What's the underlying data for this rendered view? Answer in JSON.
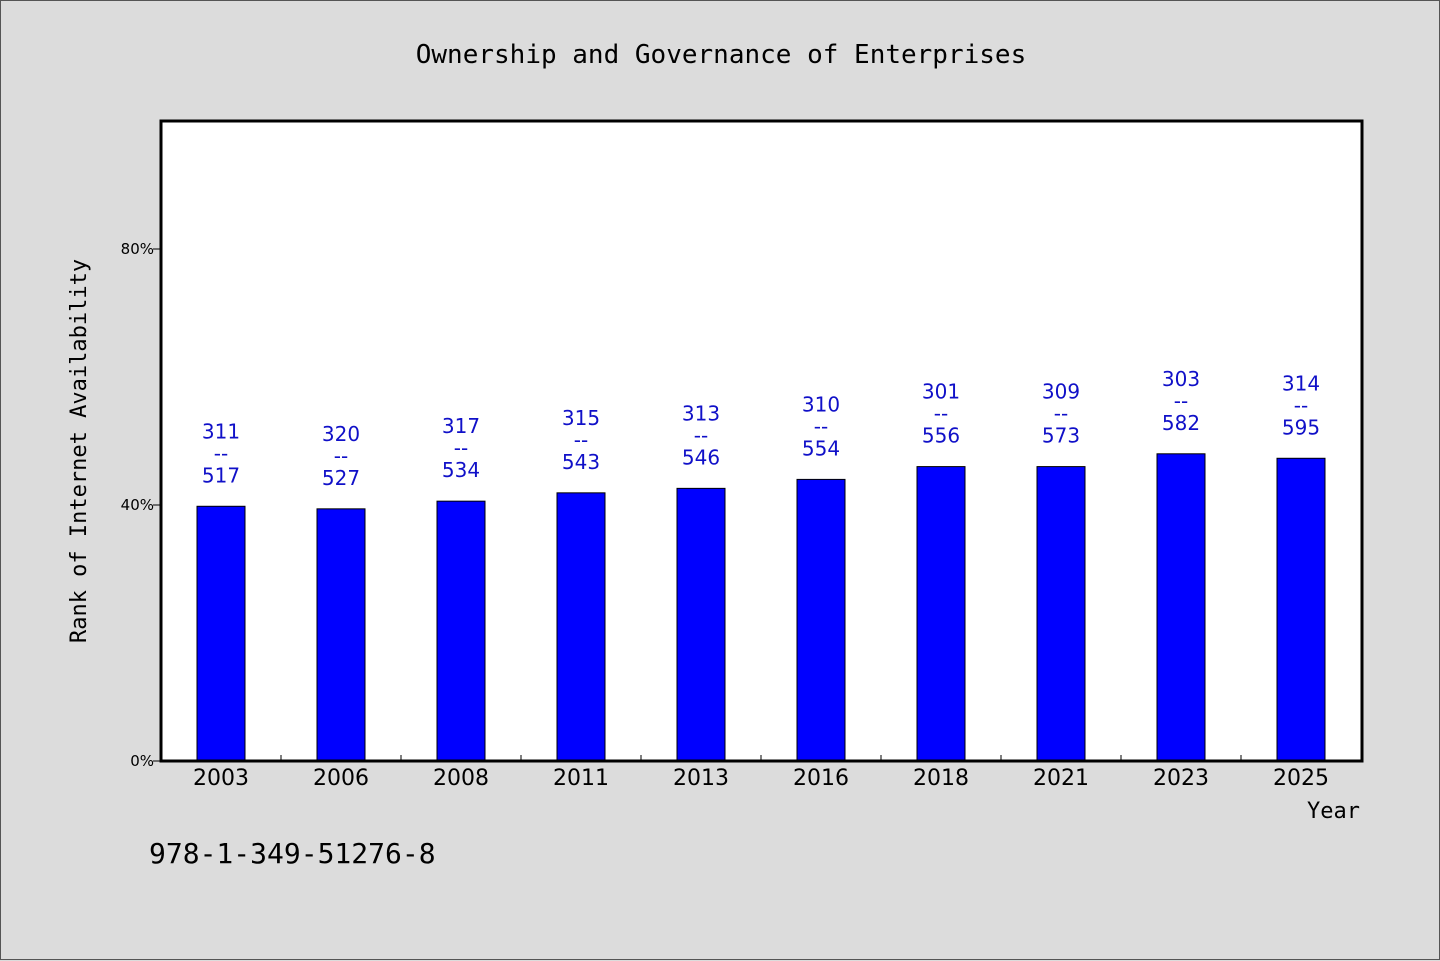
{
  "chart_data": {
    "type": "bar",
    "title": "Ownership and Governance of Enterprises",
    "xlabel": "Year",
    "ylabel": "Rank of Internet Availability",
    "categories": [
      "2003",
      "2006",
      "2008",
      "2011",
      "2013",
      "2016",
      "2018",
      "2021",
      "2023",
      "2025"
    ],
    "values": [
      39.8,
      39.4,
      40.6,
      41.9,
      42.6,
      44.0,
      46.0,
      46.0,
      48.0,
      47.3
    ],
    "labels_top": [
      "311",
      "320",
      "317",
      "315",
      "313",
      "310",
      "301",
      "309",
      "303",
      "314"
    ],
    "labels_sep": "--",
    "labels_bottom": [
      "517",
      "527",
      "534",
      "543",
      "546",
      "554",
      "556",
      "573",
      "582",
      "595"
    ],
    "ylim": [
      0,
      100
    ],
    "yticks": [
      0,
      40,
      80
    ],
    "ytick_labels": [
      "0%",
      "40%",
      "80%"
    ],
    "bar_color": "#0000ff",
    "label_color": "#1010c8",
    "grid": false,
    "legend": "none"
  },
  "footnote": "978-1-349-51276-8"
}
